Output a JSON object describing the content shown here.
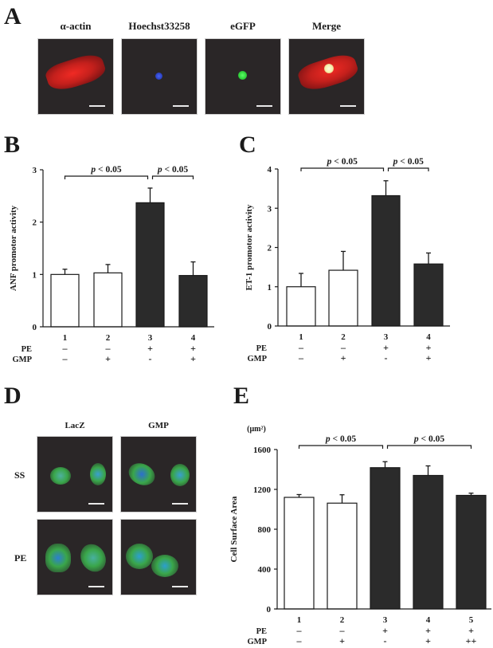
{
  "panels": {
    "A": {
      "letter": "A",
      "columns": [
        {
          "title": "α-actin",
          "stain": "red"
        },
        {
          "title": "Hoechst33258",
          "stain": "blue"
        },
        {
          "title": "eGFP",
          "stain": "green"
        },
        {
          "title": "Merge",
          "stain": "merge"
        }
      ]
    },
    "B": {
      "letter": "B"
    },
    "C": {
      "letter": "C"
    },
    "D": {
      "letter": "D",
      "columns": [
        "LacZ",
        "GMP"
      ],
      "rows": [
        "SS",
        "PE"
      ]
    },
    "E": {
      "letter": "E",
      "unit": "(μm²)"
    }
  },
  "colors": {
    "bar_open": "#ffffff",
    "bar_filled": "#2b2b2b",
    "axis": "#1a1a1a",
    "micro_bg": "#2a2627",
    "alpha_actin": "#d8231f",
    "hoechst": "#2c43c8",
    "egfp": "#2fd03a",
    "gfp_cell": "#3aa64a"
  },
  "chart_data": [
    {
      "id": "B",
      "type": "bar",
      "title": "",
      "xlabel": "",
      "ylabel": "ANF promotor activity",
      "categories": [
        "1",
        "2",
        "3",
        "4"
      ],
      "values": [
        1.0,
        1.03,
        2.37,
        0.98
      ],
      "error_upper": [
        1.1,
        1.19,
        2.65,
        1.24
      ],
      "fill": [
        "open",
        "open",
        "filled",
        "filled"
      ],
      "ylim": [
        0,
        3
      ],
      "yticks": [
        0,
        1,
        2,
        3
      ],
      "conditions": [
        {
          "label": "PE",
          "values": [
            "–",
            "–",
            "+",
            "+"
          ]
        },
        {
          "label": "GMP",
          "values": [
            "–",
            "+",
            "-",
            "+"
          ]
        }
      ],
      "annotations": [
        {
          "text": "p < 0.05",
          "from": 1,
          "to": 3
        },
        {
          "text": "p < 0.05",
          "from": 3,
          "to": 4
        }
      ],
      "grid": false
    },
    {
      "id": "C",
      "type": "bar",
      "title": "",
      "xlabel": "",
      "ylabel": "ET-1 promotor activity",
      "categories": [
        "1",
        "2",
        "3",
        "4"
      ],
      "values": [
        1.0,
        1.42,
        3.32,
        1.58
      ],
      "error_upper": [
        1.34,
        1.9,
        3.7,
        1.86
      ],
      "fill": [
        "open",
        "open",
        "filled",
        "filled"
      ],
      "ylim": [
        0,
        4
      ],
      "yticks": [
        0,
        1,
        2,
        3,
        4
      ],
      "conditions": [
        {
          "label": "PE",
          "values": [
            "–",
            "–",
            "+",
            "+"
          ]
        },
        {
          "label": "GMP",
          "values": [
            "–",
            "+",
            "-",
            "+"
          ]
        }
      ],
      "annotations": [
        {
          "text": "p < 0.05",
          "from": 1,
          "to": 3
        },
        {
          "text": "p < 0.05",
          "from": 3,
          "to": 4
        }
      ],
      "grid": false
    },
    {
      "id": "E",
      "type": "bar",
      "title": "",
      "xlabel": "",
      "ylabel": "Cell Surface Area",
      "yunit": "(μm²)",
      "categories": [
        "1",
        "2",
        "3",
        "4",
        "5"
      ],
      "values": [
        1120,
        1062,
        1418,
        1340,
        1140
      ],
      "error_upper": [
        1148,
        1146,
        1478,
        1436,
        1162
      ],
      "fill": [
        "open",
        "open",
        "filled",
        "filled",
        "filled"
      ],
      "ylim": [
        0,
        1600
      ],
      "yticks": [
        0,
        400,
        800,
        1200,
        1600
      ],
      "conditions": [
        {
          "label": "PE",
          "values": [
            "–",
            "–",
            "+",
            "+",
            "+"
          ]
        },
        {
          "label": "GMP",
          "values": [
            "–",
            "+",
            "-",
            "+",
            "++"
          ]
        }
      ],
      "annotations": [
        {
          "text": "p < 0.05",
          "from": 1,
          "to": 3
        },
        {
          "text": "p < 0.05",
          "from": 3,
          "to": 5
        }
      ],
      "grid": false
    }
  ]
}
